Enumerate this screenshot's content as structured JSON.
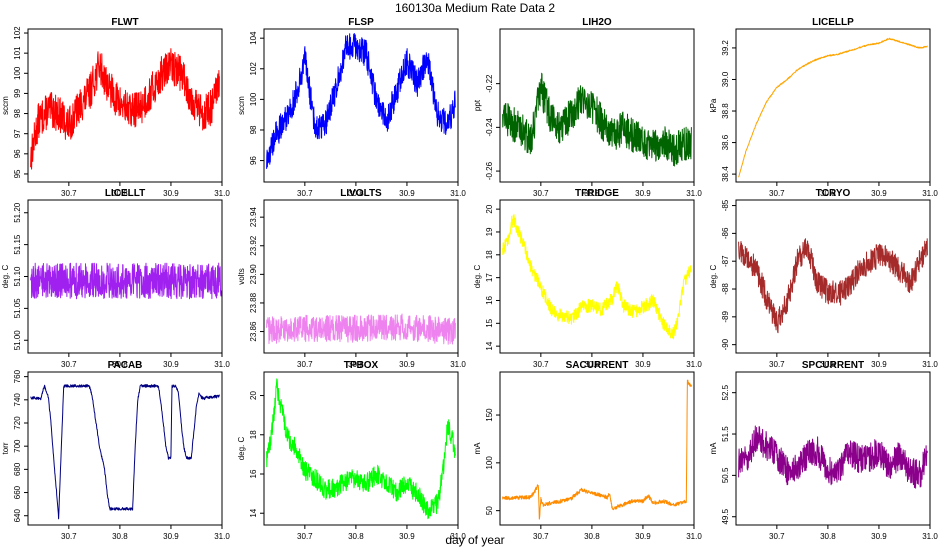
{
  "figure": {
    "title": "160130a   Medium Rate Data 2",
    "xlabel": "day of year"
  },
  "chart_data": [
    {
      "type": "line",
      "title": "FLWT",
      "ylabel": "sccm",
      "color": "#ff0000",
      "xticks": [
        "30.7",
        "30.8",
        "30.9",
        "31.0"
      ],
      "yticks": [
        "95",
        "96",
        "97",
        "98",
        "99",
        "100",
        "101",
        "102"
      ],
      "xlim": [
        30.62,
        31.0
      ],
      "ylim": [
        94.6,
        102.2
      ],
      "noise": 0.9,
      "x": [
        30.625,
        30.64,
        30.66,
        30.68,
        30.7,
        30.72,
        30.74,
        30.76,
        30.78,
        30.8,
        30.82,
        30.84,
        30.86,
        30.88,
        30.9,
        30.92,
        30.94,
        30.96,
        30.98,
        30.995
      ],
      "y": [
        95.8,
        97.6,
        98.2,
        98.0,
        97.4,
        98.3,
        99.0,
        100.4,
        99.2,
        98.5,
        98.1,
        98.3,
        99.0,
        99.9,
        100.4,
        100.0,
        98.8,
        98.0,
        98.3,
        99.5
      ]
    },
    {
      "type": "line",
      "title": "FLSP",
      "ylabel": "sccm",
      "color": "#0000ff",
      "xticks": [
        "30.7",
        "30.8",
        "30.9",
        "31.0"
      ],
      "yticks": [
        "96",
        "98",
        "100",
        "102",
        "104"
      ],
      "xlim": [
        30.62,
        31.0
      ],
      "ylim": [
        94.6,
        104.6
      ],
      "noise": 0.9,
      "x": [
        30.625,
        30.64,
        30.66,
        30.68,
        30.7,
        30.72,
        30.74,
        30.76,
        30.78,
        30.8,
        30.82,
        30.84,
        30.86,
        30.88,
        30.9,
        30.92,
        30.94,
        30.96,
        30.98,
        30.995
      ],
      "y": [
        95.8,
        97.5,
        98.6,
        100.0,
        102.6,
        98.2,
        98.4,
        100.5,
        103.4,
        103.5,
        103.0,
        100.0,
        98.6,
        100.5,
        102.5,
        101.0,
        102.8,
        99.0,
        98.4,
        99.8
      ]
    },
    {
      "type": "line",
      "title": "LIH2O",
      "ylabel": "ppt",
      "color": "#006400",
      "xticks": [
        "30.7",
        "30.8",
        "30.9",
        "31.0"
      ],
      "yticks": [
        "-0.26",
        "-0.24",
        "-0.22"
      ],
      "xlim": [
        30.62,
        31.0
      ],
      "ylim": [
        -0.265,
        -0.195
      ],
      "noise": 0.008,
      "x": [
        30.625,
        30.64,
        30.66,
        30.68,
        30.7,
        30.72,
        30.74,
        30.76,
        30.78,
        30.8,
        30.82,
        30.84,
        30.86,
        30.88,
        30.9,
        30.92,
        30.94,
        30.96,
        30.98,
        30.995
      ],
      "y": [
        -0.232,
        -0.238,
        -0.24,
        -0.246,
        -0.222,
        -0.236,
        -0.24,
        -0.234,
        -0.226,
        -0.23,
        -0.238,
        -0.244,
        -0.24,
        -0.244,
        -0.246,
        -0.248,
        -0.246,
        -0.25,
        -0.248,
        -0.247
      ]
    },
    {
      "type": "line",
      "title": "LICELLP",
      "ylabel": "kPa",
      "color": "#ffa500",
      "xticks": [
        "30.7",
        "30.8",
        "30.9",
        "31.0"
      ],
      "yticks": [
        "38.4",
        "38.6",
        "38.8",
        "39.0",
        "39.2"
      ],
      "xlim": [
        30.62,
        31.0
      ],
      "ylim": [
        38.35,
        39.32
      ],
      "noise": 0.004,
      "x": [
        30.625,
        30.64,
        30.66,
        30.68,
        30.7,
        30.72,
        30.74,
        30.76,
        30.78,
        30.8,
        30.82,
        30.84,
        30.86,
        30.88,
        30.9,
        30.92,
        30.94,
        30.96,
        30.98,
        30.995
      ],
      "y": [
        38.38,
        38.55,
        38.72,
        38.86,
        38.95,
        39.0,
        39.06,
        39.1,
        39.13,
        39.15,
        39.16,
        39.18,
        39.2,
        39.22,
        39.23,
        39.26,
        39.24,
        39.22,
        39.2,
        39.21
      ]
    },
    {
      "type": "line",
      "title": "LICELLT",
      "ylabel": "deg. C",
      "color": "#a020f0",
      "xticks": [
        "30.7",
        "30.8",
        "30.9",
        "31.0"
      ],
      "yticks": [
        "51.00",
        "51.05",
        "51.10",
        "51.15",
        "51.20"
      ],
      "xlim": [
        30.62,
        31.0
      ],
      "ylim": [
        50.98,
        51.22
      ],
      "noise": 0.028,
      "x": [
        30.625,
        31.0
      ],
      "y": [
        51.093,
        51.093
      ]
    },
    {
      "type": "line",
      "title": "LIVOLTS",
      "ylabel": "volts",
      "color": "#ee82ee",
      "xticks": [
        "30.7",
        "30.8",
        "30.9",
        "31.0"
      ],
      "yticks": [
        "23.86",
        "23.88",
        "23.90",
        "23.92",
        "23.94"
      ],
      "xlim": [
        30.62,
        31.0
      ],
      "ylim": [
        23.845,
        23.952
      ],
      "noise": 0.0095,
      "x": [
        30.625,
        30.7,
        30.8,
        30.9,
        30.995
      ],
      "y": [
        23.861,
        23.862,
        23.862,
        23.863,
        23.86
      ]
    },
    {
      "type": "line",
      "title": "TFRIDGE",
      "ylabel": "deg. C",
      "color": "#ffff00",
      "xticks": [
        "30.7",
        "30.8",
        "30.9",
        "31.0"
      ],
      "yticks": [
        "14",
        "15",
        "16",
        "17",
        "18",
        "19",
        "20"
      ],
      "xlim": [
        30.62,
        31.0
      ],
      "ylim": [
        13.7,
        20.4
      ],
      "noise": 0.3,
      "x": [
        30.625,
        30.635,
        30.645,
        30.66,
        30.67,
        30.68,
        30.69,
        30.7,
        30.72,
        30.74,
        30.76,
        30.78,
        30.8,
        30.82,
        30.84,
        30.85,
        30.86,
        30.88,
        30.9,
        30.92,
        30.94,
        30.96,
        30.97,
        30.98,
        30.995
      ],
      "y": [
        18.2,
        18.6,
        19.6,
        18.8,
        18.2,
        17.5,
        17.0,
        16.6,
        15.6,
        15.3,
        15.2,
        15.7,
        15.8,
        15.6,
        16.1,
        16.7,
        15.8,
        15.5,
        15.7,
        16.0,
        15.0,
        14.5,
        15.4,
        16.8,
        17.4
      ]
    },
    {
      "type": "line",
      "title": "TCRYO",
      "ylabel": "deg. C",
      "color": "#a52a2a",
      "xticks": [
        "30.7",
        "30.8",
        "30.9",
        "31.0"
      ],
      "yticks": [
        "-90",
        "-89",
        "-88",
        "-87",
        "-86",
        "-85"
      ],
      "xlim": [
        30.62,
        31.0
      ],
      "ylim": [
        -90.3,
        -84.8
      ],
      "noise": 0.45,
      "x": [
        30.625,
        30.64,
        30.66,
        30.68,
        30.7,
        30.72,
        30.74,
        30.76,
        30.78,
        30.8,
        30.82,
        30.84,
        30.86,
        30.88,
        30.9,
        30.92,
        30.94,
        30.96,
        30.98,
        30.995
      ],
      "y": [
        -86.5,
        -86.9,
        -87.3,
        -88.3,
        -89.2,
        -88.5,
        -87.0,
        -86.4,
        -87.8,
        -88.1,
        -88.2,
        -87.9,
        -87.4,
        -87.0,
        -86.8,
        -86.9,
        -87.3,
        -87.8,
        -87.0,
        -86.4
      ]
    },
    {
      "type": "line",
      "title": "PACAB",
      "ylabel": "torr",
      "color": "#000080",
      "xticks": [
        "30.7",
        "30.8",
        "30.9",
        "31.0"
      ],
      "yticks": [
        "640",
        "660",
        "680",
        "700",
        "720",
        "740",
        "760"
      ],
      "xlim": [
        30.62,
        31.0
      ],
      "ylim": [
        632,
        764
      ],
      "noise": 1.2,
      "x": [
        30.625,
        30.645,
        30.652,
        30.66,
        30.665,
        30.672,
        30.676,
        30.68,
        30.69,
        30.7,
        30.74,
        30.745,
        30.76,
        30.77,
        30.775,
        30.78,
        30.82,
        30.825,
        30.83,
        30.835,
        30.84,
        30.865,
        30.87,
        30.875,
        30.878,
        30.885,
        30.89,
        30.895,
        30.9,
        30.902,
        30.91,
        30.915,
        30.92,
        30.925,
        30.93,
        30.94,
        30.942,
        30.95,
        30.955,
        30.96,
        30.965,
        30.97,
        30.995
      ],
      "y": [
        742,
        741,
        752,
        742,
        720,
        680,
        660,
        638,
        752,
        752,
        752,
        745,
        700,
        680,
        660,
        646,
        646,
        646,
        700,
        740,
        752,
        752,
        752,
        752,
        745,
        720,
        700,
        690,
        690,
        752,
        752,
        745,
        720,
        700,
        690,
        690,
        700,
        735,
        746,
        742,
        741,
        742,
        743
      ]
    },
    {
      "type": "line",
      "title": "TPBOX",
      "ylabel": "deg. C",
      "color": "#00ff00",
      "xticks": [
        "30.7",
        "30.8",
        "30.9",
        "31.0"
      ],
      "yticks": [
        "14",
        "16",
        "18",
        "20"
      ],
      "xlim": [
        30.62,
        31.0
      ],
      "ylim": [
        13.4,
        21.2
      ],
      "noise": 0.5,
      "x": [
        30.625,
        30.635,
        30.645,
        30.66,
        30.67,
        30.68,
        30.69,
        30.7,
        30.72,
        30.74,
        30.76,
        30.78,
        30.8,
        30.82,
        30.84,
        30.86,
        30.88,
        30.9,
        30.92,
        30.94,
        30.96,
        30.97,
        30.98,
        30.995
      ],
      "y": [
        16.8,
        18.0,
        20.5,
        18.6,
        17.6,
        17.4,
        16.8,
        16.2,
        15.8,
        15.2,
        15.3,
        15.6,
        15.8,
        15.5,
        16.0,
        15.6,
        15.1,
        15.5,
        15.0,
        14.2,
        14.5,
        16.0,
        18.5,
        17.2
      ]
    },
    {
      "type": "line",
      "title": "SACURRENT",
      "ylabel": "mA",
      "color": "#ff8c00",
      "xticks": [
        "30.7",
        "30.8",
        "30.9",
        "31.0"
      ],
      "yticks": [
        "50",
        "100",
        "150"
      ],
      "xlim": [
        30.62,
        31.0
      ],
      "ylim": [
        35,
        195
      ],
      "noise": 2,
      "x": [
        30.625,
        30.68,
        30.69,
        30.695,
        30.697,
        30.7,
        30.705,
        30.72,
        30.74,
        30.76,
        30.78,
        30.8,
        30.82,
        30.83,
        30.835,
        30.84,
        30.86,
        30.88,
        30.9,
        30.91,
        30.92,
        30.94,
        30.96,
        30.975,
        30.985,
        30.987,
        30.99,
        30.995
      ],
      "y": [
        63,
        64,
        72,
        78,
        40,
        62,
        56,
        58,
        60,
        63,
        72,
        68,
        66,
        64,
        68,
        52,
        56,
        60,
        60,
        66,
        58,
        60,
        56,
        58,
        60,
        186,
        182,
        180
      ]
    },
    {
      "type": "line",
      "title": "SPCURRENT",
      "ylabel": "mA",
      "color": "#8b008b",
      "xticks": [
        "30.7",
        "30.8",
        "30.9",
        "31.0"
      ],
      "yticks": [
        "49.5",
        "50.5",
        "51.5",
        "52.5"
      ],
      "xlim": [
        30.62,
        31.0
      ],
      "ylim": [
        49.3,
        53.0
      ],
      "noise": 0.35,
      "x": [
        30.625,
        30.64,
        30.66,
        30.68,
        30.7,
        30.72,
        30.74,
        30.76,
        30.78,
        30.8,
        30.82,
        30.84,
        30.86,
        30.88,
        30.9,
        30.92,
        30.94,
        30.96,
        30.98,
        30.995
      ],
      "y": [
        50.8,
        50.9,
        51.4,
        51.2,
        51.0,
        50.6,
        50.7,
        51.0,
        51.1,
        50.6,
        50.6,
        51.1,
        50.9,
        50.9,
        51.1,
        50.7,
        51.0,
        50.6,
        50.5,
        51.0
      ]
    }
  ]
}
